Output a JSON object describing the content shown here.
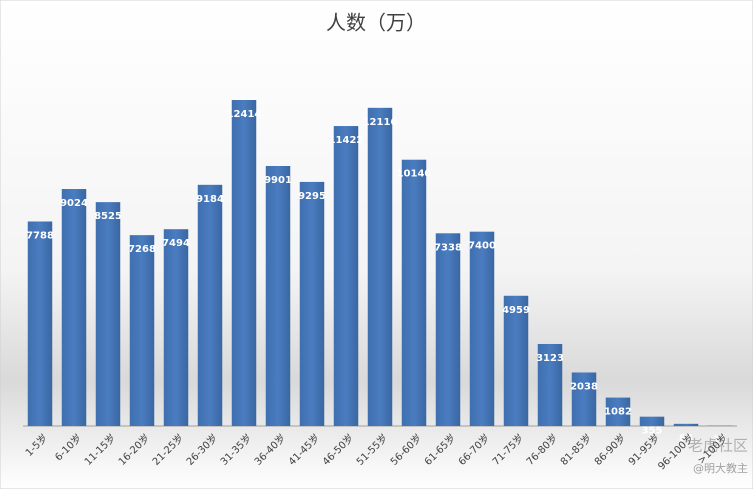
{
  "chart_data": {
    "type": "bar",
    "title": "人数（万）",
    "categories": [
      "1-5岁",
      "6-10岁",
      "11-15岁",
      "16-20岁",
      "21-25岁",
      "26-30岁",
      "31-35岁",
      "36-40岁",
      "41-45岁",
      "46-50岁",
      "51-55岁",
      "56-60岁",
      "61-65岁",
      "66-70岁",
      "71-75岁",
      "76-80岁",
      "81-85岁",
      "86-90岁",
      "91-95岁",
      "96-100岁",
      ">100岁"
    ],
    "values": [
      7788,
      9024,
      8525,
      7268,
      7494,
      9184,
      12414,
      9901,
      9295,
      11422,
      12116,
      10140,
      7338,
      7400,
      4959,
      3123,
      2038,
      1082,
      355,
      83,
      11
    ],
    "color": "#4472c4"
  },
  "watermark": [
    "老虎社区",
    "@明大教主"
  ]
}
